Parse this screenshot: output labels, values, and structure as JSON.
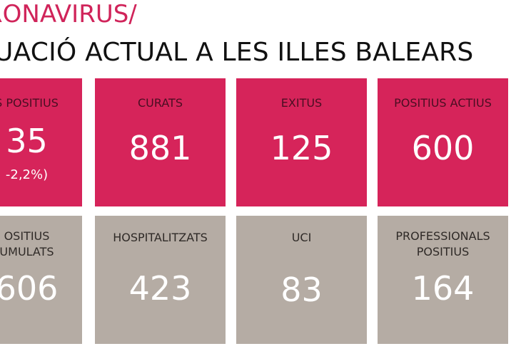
{
  "header": {
    "title": "RONAVIRUS/",
    "subtitle": "UACIÓ ACTUAL A LES ILLES BALEARS"
  },
  "tiles": [
    {
      "label": "S POSITIUS",
      "value": "35",
      "sub": "-2,2%)"
    },
    {
      "label": "CURATS",
      "value": "881"
    },
    {
      "label": "EXITUS",
      "value": "125"
    },
    {
      "label": "POSITIUS ACTIUS",
      "value": "600"
    },
    {
      "label": "OSITIUS\nUMULATS",
      "value": "606"
    },
    {
      "label": "HOSPITALITZATS",
      "value": "423"
    },
    {
      "label": "UCI",
      "value": "83"
    },
    {
      "label": "PROFESSIONALS\nPOSITIUS",
      "value": "164"
    }
  ],
  "colors": {
    "accent": "#d6245a",
    "title": "#d0245a",
    "gray_tile": "#b5aca4",
    "text_dark": "#111111",
    "text_white": "#ffffff"
  }
}
